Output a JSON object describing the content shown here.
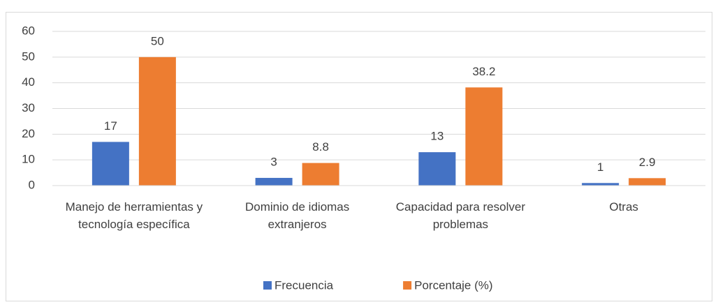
{
  "chart_data": {
    "type": "bar",
    "categories": [
      "Manejo de herramientas y tecnología específica",
      "Dominio de idiomas extranjeros",
      "Capacidad para resolver problemas",
      "Otras"
    ],
    "series": [
      {
        "name": "Frecuencia",
        "color": "#4472c4",
        "values": [
          17,
          3,
          13,
          1
        ]
      },
      {
        "name": "Porcentaje (%)",
        "color": "#ed7d31",
        "values": [
          50,
          8.8,
          38.2,
          2.9
        ]
      }
    ],
    "ylim": [
      0,
      60
    ],
    "yticks": [
      0,
      10,
      20,
      30,
      40,
      50,
      60
    ],
    "grid": true,
    "legend": "bottom"
  }
}
